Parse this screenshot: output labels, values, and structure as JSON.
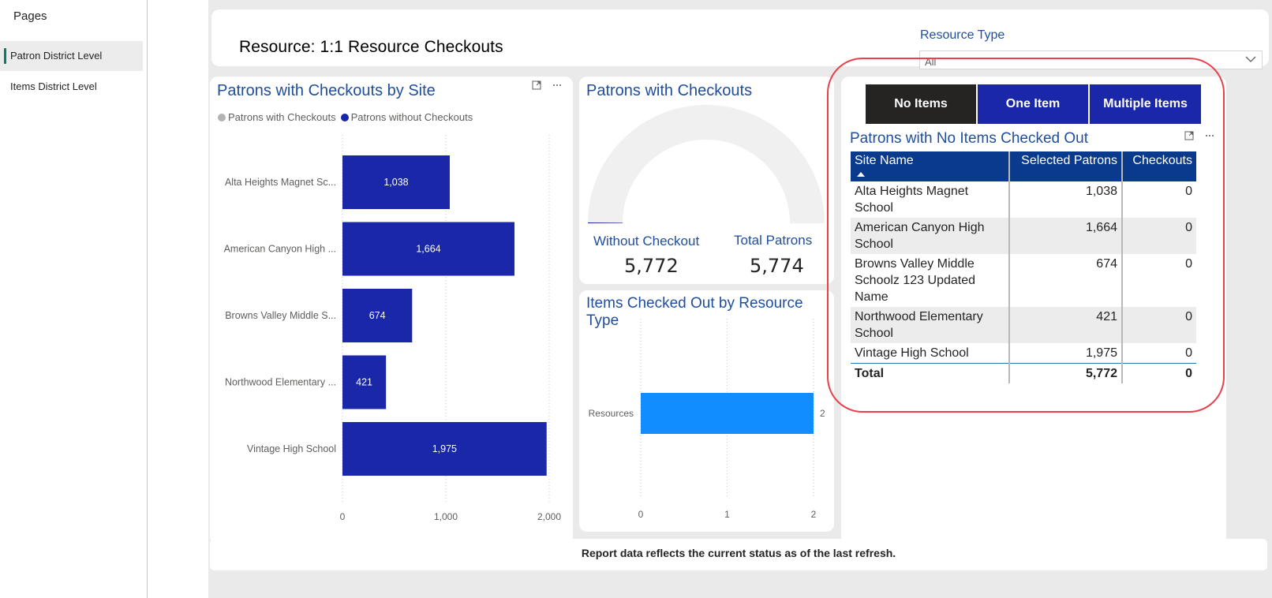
{
  "pages": {
    "title": "Pages",
    "items": [
      {
        "label": "Patron District Level",
        "active": true
      },
      {
        "label": "Items District Level",
        "active": false
      }
    ]
  },
  "header": {
    "title": "Resource: 1:1 Resource Checkouts",
    "filter_label": "Resource Type",
    "filter_value": "All"
  },
  "bar_visual": {
    "title": "Patrons with Checkouts by Site",
    "legend": [
      {
        "label": "Patrons with Checkouts",
        "color": "#b3b3b3"
      },
      {
        "label": "Patrons without Checkouts",
        "color": "#1a27a9"
      }
    ],
    "icons": [
      "expand-icon",
      "more-options-icon"
    ]
  },
  "gauge_visual": {
    "title": "Patrons with Checkouts",
    "left_label": "Without Checkout",
    "left_value": "5,772",
    "right_label": "Total Patrons",
    "right_value": "5,774"
  },
  "resource_visual": {
    "title": "Items Checked Out by Resource Type"
  },
  "right_panel": {
    "buttons": [
      "No Items",
      "One Item",
      "Multiple Items"
    ],
    "table_title": "Patrons with No Items Checked Out",
    "columns": [
      "Site Name",
      "Selected Patrons",
      "Checkouts"
    ],
    "rows": [
      [
        "Alta Heights Magnet School",
        "1,038",
        "0"
      ],
      [
        "American Canyon High School",
        "1,664",
        "0"
      ],
      [
        "Browns Valley Middle Schoolz 123 Updated Name",
        "674",
        "0"
      ],
      [
        "Northwood Elementary School",
        "421",
        "0"
      ],
      [
        "Vintage High School",
        "1,975",
        "0"
      ]
    ],
    "total": [
      "Total",
      "5,772",
      "0"
    ]
  },
  "footer": {
    "text": "Report data reflects the current status as of the last refresh."
  },
  "chart_data": [
    {
      "type": "bar",
      "orientation": "horizontal",
      "title": "Patrons with Checkouts by Site",
      "categories": [
        "Alta Heights Magnet Sc...",
        "American Canyon High ...",
        "Browns Valley Middle S...",
        "Northwood Elementary ...",
        "Vintage High School"
      ],
      "series": [
        {
          "name": "Patrons with Checkouts",
          "values": [
            0,
            0,
            0,
            0,
            0
          ]
        },
        {
          "name": "Patrons without Checkouts",
          "values": [
            1038,
            1664,
            674,
            421,
            1975
          ]
        }
      ],
      "data_labels": [
        "1,038",
        "1,664",
        "674",
        "421",
        "1,975"
      ],
      "xlim": [
        0,
        2000
      ],
      "xticks": [
        "0",
        "1,000",
        "2,000"
      ],
      "colors": {
        "bar": "#1a27a9",
        "grid": "#c8c8c8"
      },
      "grid": true,
      "legend": "top-left"
    },
    {
      "type": "gauge",
      "title": "Patrons with Checkouts",
      "value": 2,
      "max": 5774,
      "colors": {
        "track": "#f0f0f0",
        "fill": "#1a27a9"
      }
    },
    {
      "type": "bar",
      "orientation": "horizontal",
      "title": "Items Checked Out by Resource Type",
      "categories": [
        "Resources"
      ],
      "values": [
        2
      ],
      "data_labels": [
        "2"
      ],
      "xlim": [
        0,
        2
      ],
      "xticks": [
        "0",
        "1",
        "2"
      ],
      "colors": {
        "bar": "#118dff",
        "grid": "#c8c8c8"
      },
      "grid": true
    }
  ]
}
